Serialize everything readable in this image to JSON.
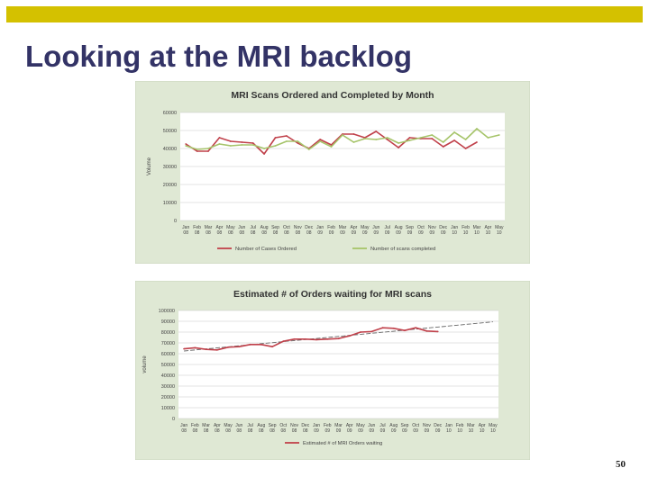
{
  "slide": {
    "title": "Looking at the MRI backlog",
    "page_number": "50"
  },
  "colors": {
    "top_bar": "#d4c100",
    "title": "#333366",
    "panel_bg": "#dfe8d4",
    "plot_bg": "#ffffff",
    "series_red": "#c0404a",
    "series_green": "#a6c46a",
    "trend": "#666666"
  },
  "chart_data": [
    {
      "type": "line",
      "title": "MRI Scans Ordered and Completed by Month",
      "xlabel": "",
      "ylabel": "Volume",
      "ylim": [
        0,
        60000
      ],
      "yticks": [
        "0",
        "10000",
        "20000",
        "30000",
        "40000",
        "50000",
        "60000"
      ],
      "grid": true,
      "legend": "bottom",
      "categories": [
        {
          "m": "Jan",
          "y": "08"
        },
        {
          "m": "Feb",
          "y": "08"
        },
        {
          "m": "Mar",
          "y": "08"
        },
        {
          "m": "Apr",
          "y": "08"
        },
        {
          "m": "May",
          "y": "08"
        },
        {
          "m": "Jun",
          "y": "08"
        },
        {
          "m": "Jul",
          "y": "08"
        },
        {
          "m": "Aug",
          "y": "08"
        },
        {
          "m": "Sep",
          "y": "08"
        },
        {
          "m": "Oct",
          "y": "08"
        },
        {
          "m": "Nov",
          "y": "08"
        },
        {
          "m": "Dec",
          "y": "08"
        },
        {
          "m": "Jan",
          "y": "09"
        },
        {
          "m": "Feb",
          "y": "09"
        },
        {
          "m": "Mar",
          "y": "09"
        },
        {
          "m": "Apr",
          "y": "09"
        },
        {
          "m": "May",
          "y": "09"
        },
        {
          "m": "Jun",
          "y": "09"
        },
        {
          "m": "Jul",
          "y": "09"
        },
        {
          "m": "Aug",
          "y": "09"
        },
        {
          "m": "Sep",
          "y": "09"
        },
        {
          "m": "Oct",
          "y": "09"
        },
        {
          "m": "Nov",
          "y": "09"
        },
        {
          "m": "Dec",
          "y": "09"
        },
        {
          "m": "Jan",
          "y": "10"
        },
        {
          "m": "Feb",
          "y": "10"
        },
        {
          "m": "Mar",
          "y": "10"
        },
        {
          "m": "Apr",
          "y": "10"
        },
        {
          "m": "May",
          "y": "10"
        }
      ],
      "series": [
        {
          "name": "Number of Cases Ordered",
          "color": "#c0404a",
          "values": [
            42500,
            38500,
            38500,
            46000,
            44000,
            43500,
            43000,
            37000,
            46000,
            47000,
            43000,
            40000,
            45000,
            42000,
            48000,
            48000,
            46000,
            49500,
            45000,
            40500,
            46000,
            45500,
            45500,
            41000,
            44500,
            40000,
            43500,
            null,
            null
          ]
        },
        {
          "name": "Number of scans completed",
          "color": "#a6c46a",
          "values": [
            41500,
            39500,
            40000,
            42500,
            41500,
            42000,
            42000,
            40000,
            41500,
            44000,
            44000,
            39500,
            44000,
            41000,
            47500,
            43500,
            45500,
            45000,
            46000,
            43000,
            44500,
            46000,
            47500,
            43500,
            49000,
            45000,
            51000,
            46000,
            47500
          ]
        }
      ]
    },
    {
      "type": "line",
      "title": "Estimated # of Orders waiting for MRI scans",
      "xlabel": "",
      "ylabel": "volume",
      "ylim": [
        0,
        100000
      ],
      "yticks": [
        "0",
        "10000",
        "20000",
        "30000",
        "40000",
        "50000",
        "60000",
        "70000",
        "80000",
        "90000",
        "100000"
      ],
      "grid": true,
      "legend": "bottom",
      "categories": [
        {
          "m": "Jan",
          "y": "08"
        },
        {
          "m": "Feb",
          "y": "08"
        },
        {
          "m": "Mar",
          "y": "08"
        },
        {
          "m": "Apr",
          "y": "08"
        },
        {
          "m": "May",
          "y": "08"
        },
        {
          "m": "Jun",
          "y": "08"
        },
        {
          "m": "Jul",
          "y": "08"
        },
        {
          "m": "Aug",
          "y": "08"
        },
        {
          "m": "Sep",
          "y": "08"
        },
        {
          "m": "Oct",
          "y": "08"
        },
        {
          "m": "Nov",
          "y": "08"
        },
        {
          "m": "Dec",
          "y": "08"
        },
        {
          "m": "Jan",
          "y": "09"
        },
        {
          "m": "Feb",
          "y": "09"
        },
        {
          "m": "Mar",
          "y": "09"
        },
        {
          "m": "Apr",
          "y": "09"
        },
        {
          "m": "May",
          "y": "09"
        },
        {
          "m": "Jun",
          "y": "09"
        },
        {
          "m": "Jul",
          "y": "09"
        },
        {
          "m": "Aug",
          "y": "09"
        },
        {
          "m": "Sep",
          "y": "09"
        },
        {
          "m": "Oct",
          "y": "09"
        },
        {
          "m": "Nov",
          "y": "09"
        },
        {
          "m": "Dec",
          "y": "09"
        },
        {
          "m": "Jan",
          "y": "10"
        },
        {
          "m": "Feb",
          "y": "10"
        },
        {
          "m": "Mar",
          "y": "10"
        },
        {
          "m": "Apr",
          "y": "10"
        },
        {
          "m": "May",
          "y": "10"
        }
      ],
      "series": [
        {
          "name": "Estimated # of MRI Orders waiting",
          "color": "#c0404a",
          "values": [
            64500,
            65500,
            64000,
            63500,
            66000,
            66500,
            68500,
            68500,
            66500,
            71500,
            73500,
            73500,
            73000,
            73500,
            74000,
            76500,
            80000,
            80500,
            84000,
            83500,
            81500,
            84000,
            81000,
            80500,
            null,
            null,
            null,
            null,
            null
          ]
        }
      ],
      "trendline": {
        "values": [
          62500,
          89500
        ],
        "color": "#666666"
      }
    }
  ]
}
